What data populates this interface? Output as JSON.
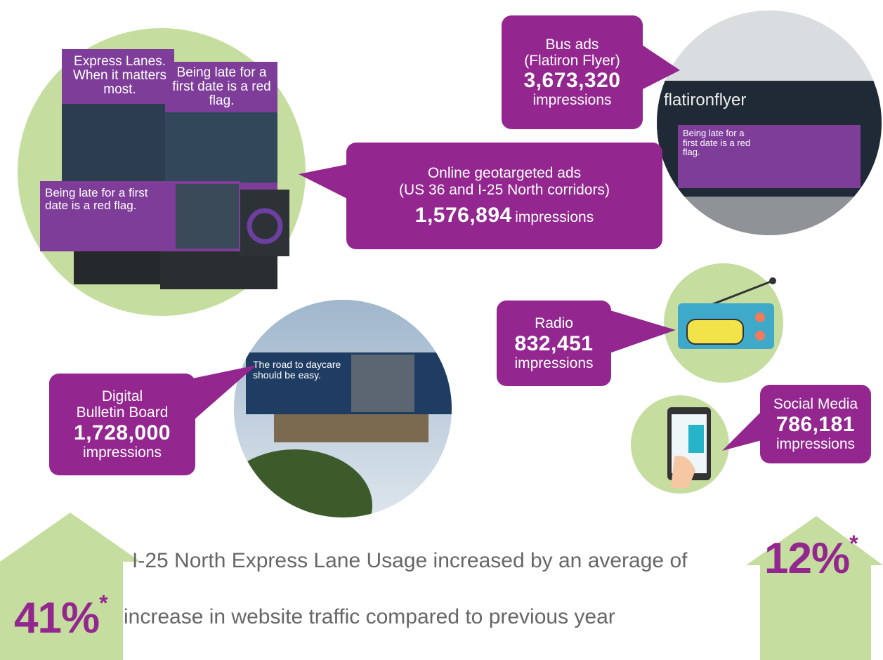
{
  "callouts": [
    {
      "label": [
        "Bus ads",
        "(Flatiron Flyer)"
      ],
      "value": "3,673,320",
      "unit": "impressions"
    },
    {
      "label": [
        "Online geotargeted ads",
        "(US 36 and I-25 North corridors)"
      ],
      "value": "1,576,894",
      "unit": "impressions"
    },
    {
      "label": [
        "Digital",
        "Bulletin Board"
      ],
      "value": "1,728,000",
      "unit": "impressions"
    },
    {
      "label": [
        "Radio"
      ],
      "value": "832,451",
      "unit": "impressions"
    },
    {
      "label": [
        "Social Media"
      ],
      "value": "786,181",
      "unit": "impressions"
    }
  ],
  "usage": {
    "text": "I-25 North Express Lane Usage increased by an average of",
    "value": "12%",
    "note": "*"
  },
  "website": {
    "value": "41%",
    "note": "*",
    "text": "increase in website traffic compared to previous year"
  },
  "ad_texts": {
    "poster_1": "Express Lanes. When it matters most.",
    "poster_2": "Being late for a first date is a red flag.",
    "banner": "Being late for a first date is a red flag.",
    "billboard": "The road to daycare should be easy.",
    "bus_brand": "flatironflyer",
    "bus_ad": "Being late for a first date is a red flag."
  }
}
